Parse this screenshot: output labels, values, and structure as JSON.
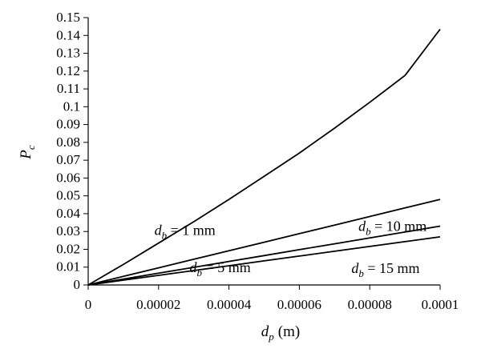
{
  "chart_data": {
    "type": "line",
    "xlabel": {
      "var": "d",
      "sub": "p",
      "unit": "(m)"
    },
    "ylabel": {
      "var": "P",
      "sub": "c"
    },
    "xlim": [
      0,
      0.0001
    ],
    "ylim": [
      0,
      0.15
    ],
    "x_ticks": [
      "0",
      "0.00002",
      "0.00004",
      "0.00006",
      "0.00008",
      "0.0001"
    ],
    "y_ticks": [
      "0",
      "0.01",
      "0.02",
      "0.03",
      "0.04",
      "0.05",
      "0.06",
      "0.07",
      "0.08",
      "0.09",
      "0.1",
      "0.11",
      "0.12",
      "0.13",
      "0.14",
      "0.15"
    ],
    "grid": false,
    "legend": "inline labels",
    "series": [
      {
        "name": "d_b = 1 mm",
        "label": {
          "var": "d",
          "sub": "b",
          "rest": " = 1 mm"
        },
        "x": [
          0,
          1e-05,
          2e-05,
          3e-05,
          4e-05,
          5e-05,
          6e-05,
          7e-05,
          8e-05,
          9e-05,
          0.0001
        ],
        "y": [
          0,
          0.0115,
          0.0235,
          0.0355,
          0.048,
          0.061,
          0.074,
          0.088,
          0.1025,
          0.1175,
          0.1435
        ]
      },
      {
        "name": "d_b = 5 mm",
        "label": {
          "var": "d",
          "sub": "b",
          "rest": " = 5 mm"
        },
        "x": [
          0,
          1e-05,
          2e-05,
          3e-05,
          4e-05,
          5e-05,
          6e-05,
          7e-05,
          8e-05,
          9e-05,
          0.0001
        ],
        "y": [
          0,
          0.0048,
          0.0096,
          0.0144,
          0.0192,
          0.024,
          0.0288,
          0.0336,
          0.0384,
          0.0432,
          0.048
        ]
      },
      {
        "name": "d_b = 10 mm",
        "label": {
          "var": "d",
          "sub": "b",
          "rest": " = 10 mm"
        },
        "x": [
          0,
          1e-05,
          2e-05,
          3e-05,
          4e-05,
          5e-05,
          6e-05,
          7e-05,
          8e-05,
          9e-05,
          0.0001
        ],
        "y": [
          0,
          0.0033,
          0.0066,
          0.0099,
          0.0132,
          0.0165,
          0.0198,
          0.0231,
          0.0264,
          0.0297,
          0.033
        ]
      },
      {
        "name": "d_b = 15 mm",
        "label": {
          "var": "d",
          "sub": "b",
          "rest": " = 15 mm"
        },
        "x": [
          0,
          1e-05,
          2e-05,
          3e-05,
          4e-05,
          5e-05,
          6e-05,
          7e-05,
          8e-05,
          9e-05,
          0.0001
        ],
        "y": [
          0,
          0.0027,
          0.0054,
          0.0081,
          0.0108,
          0.0135,
          0.0162,
          0.0189,
          0.0216,
          0.0243,
          0.027
        ]
      }
    ]
  }
}
